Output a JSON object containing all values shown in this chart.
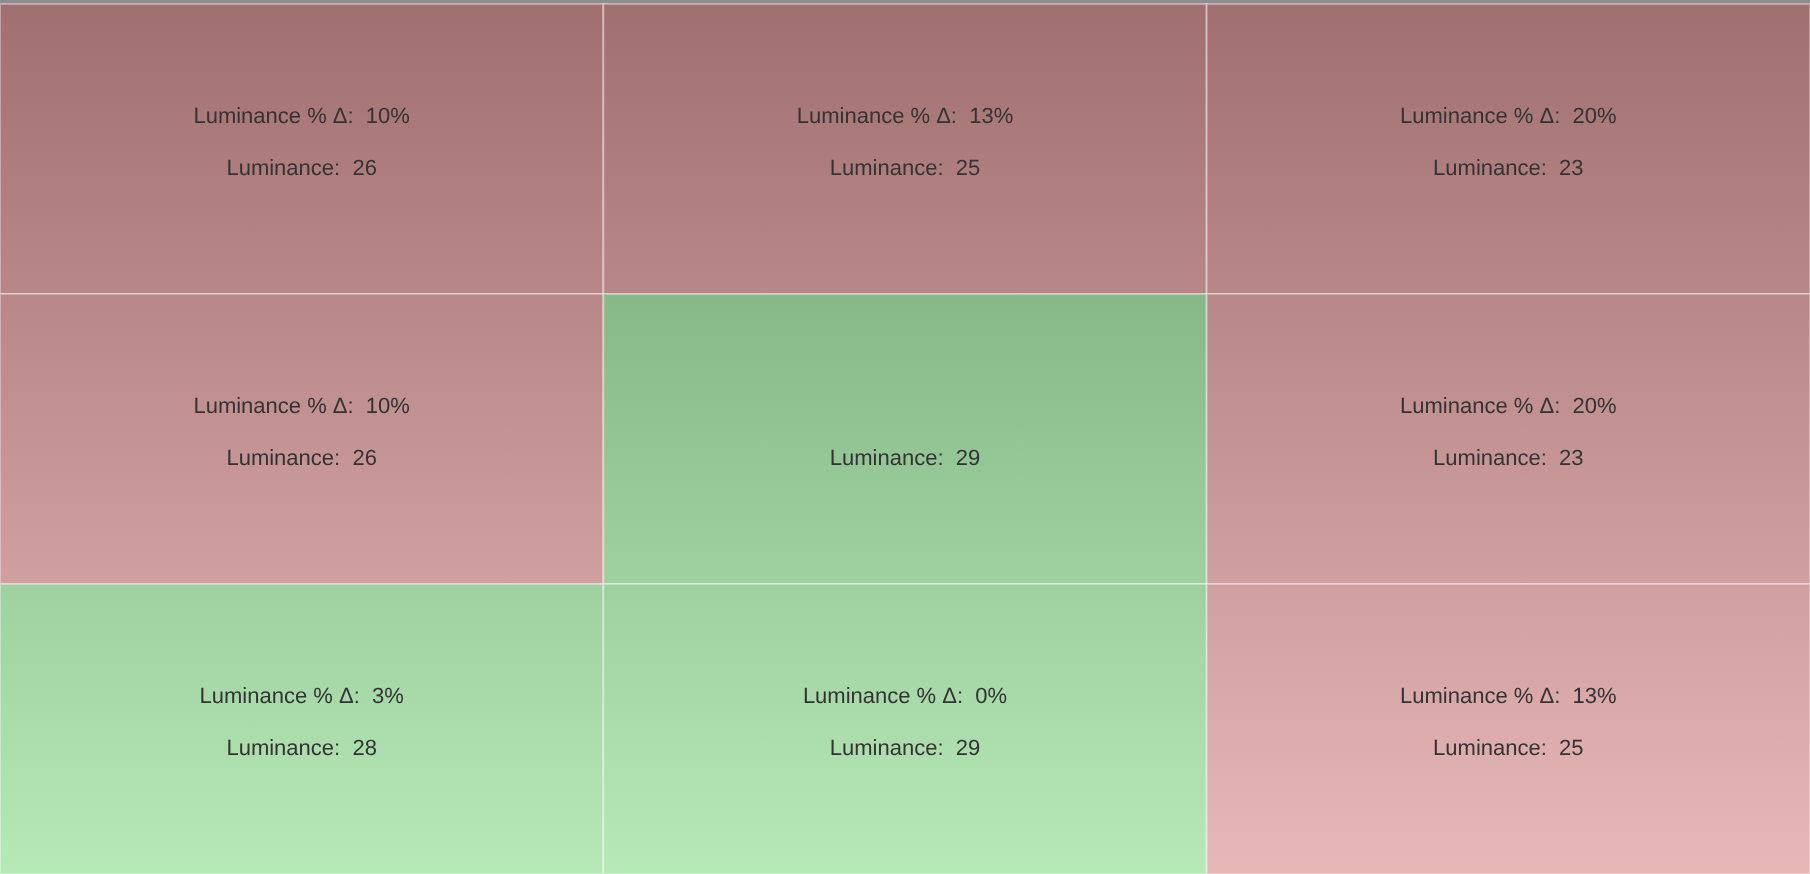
{
  "chart_data": {
    "type": "heatmap",
    "categories": [
      null,
      null,
      null
    ],
    "y_categories": [
      null,
      null,
      null
    ],
    "cells": [
      [
        26,
        25,
        23
      ],
      [
        26,
        29,
        23
      ],
      [
        28,
        29,
        25
      ]
    ],
    "cell_labels": [
      [
        "Luminance:  26",
        "Luminance:  25",
        "Luminance:  23"
      ],
      [
        "Luminance:  26",
        "Luminance:  29",
        "Luminance:  23"
      ],
      [
        "Luminance:  28",
        "Luminance:  29",
        "Luminance:  25"
      ]
    ],
    "annotations": [
      "Luminance % Δ:  10%",
      "Luminance % Δ:  13%",
      "Luminance % Δ:  20%",
      "Luminance % Δ:  10%",
      "Luminance % Δ:  20%",
      "Luminance % Δ:  3%",
      "Luminance % Δ:  0%",
      "Luminance % Δ:  13%"
    ]
  }
}
